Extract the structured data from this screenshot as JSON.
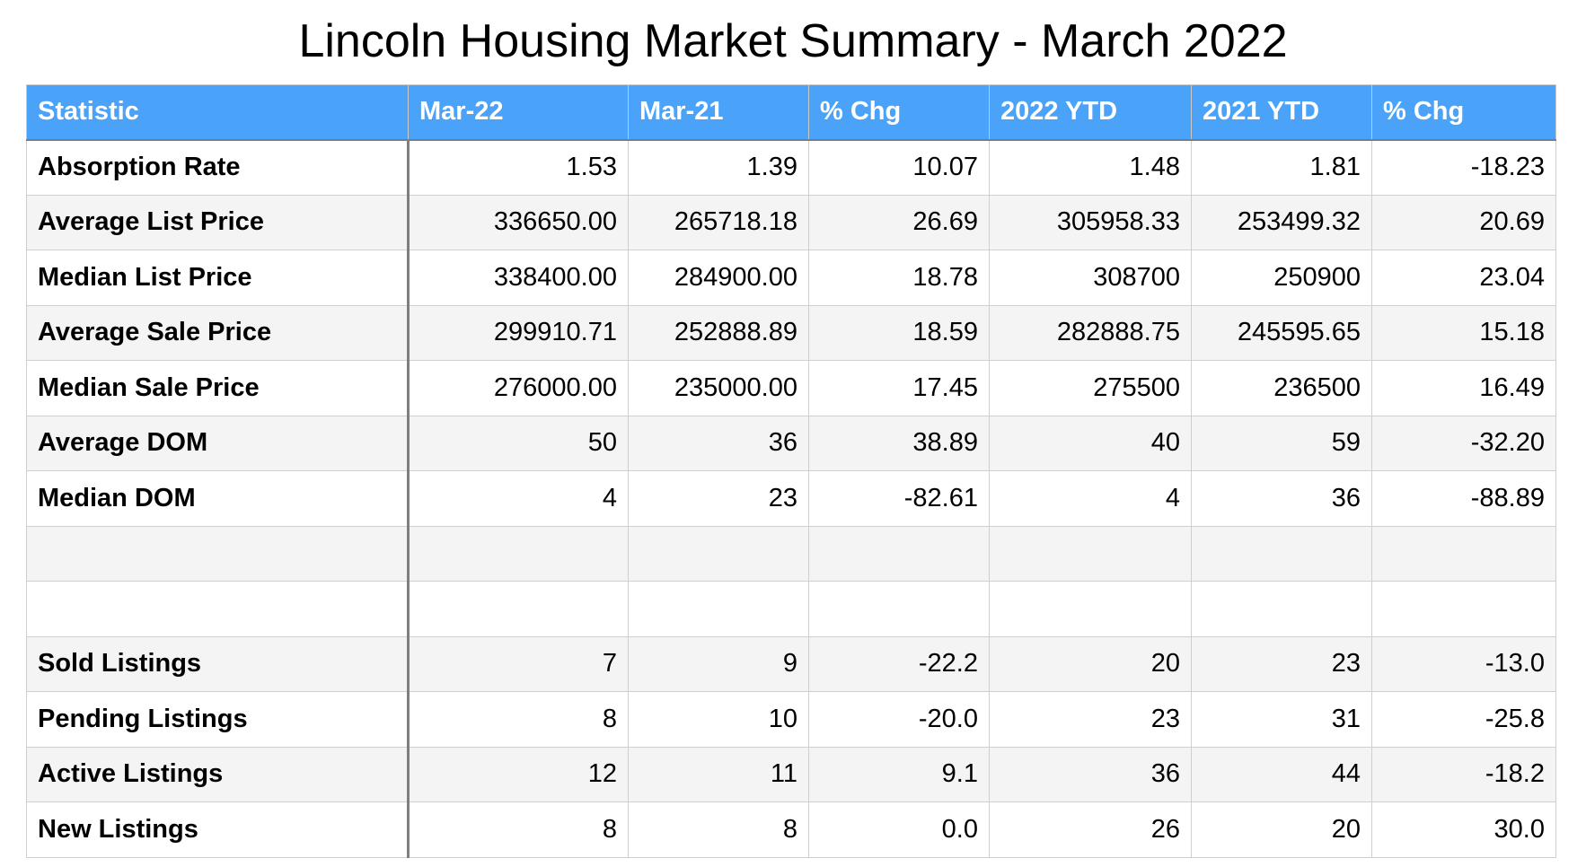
{
  "title": "Lincoln Housing Market Summary - March 2022",
  "table": {
    "headers": [
      "Statistic",
      "Mar-22",
      "Mar-21",
      "% Chg",
      "2022 YTD",
      "2021 YTD",
      "% Chg"
    ],
    "rows": [
      [
        "Absorption Rate",
        "1.53",
        "1.39",
        "10.07",
        "1.48",
        "1.81",
        "-18.23"
      ],
      [
        "Average List Price",
        "336650.00",
        "265718.18",
        "26.69",
        "305958.33",
        "253499.32",
        "20.69"
      ],
      [
        "Median List Price",
        "338400.00",
        "284900.00",
        "18.78",
        "308700",
        "250900",
        "23.04"
      ],
      [
        "Average Sale Price",
        "299910.71",
        "252888.89",
        "18.59",
        "282888.75",
        "245595.65",
        "15.18"
      ],
      [
        "Median Sale Price",
        "276000.00",
        "235000.00",
        "17.45",
        "275500",
        "236500",
        "16.49"
      ],
      [
        "Average DOM",
        "50",
        "36",
        "38.89",
        "40",
        "59",
        "-32.20"
      ],
      [
        "Median DOM",
        "4",
        "23",
        "-82.61",
        "4",
        "36",
        "-88.89"
      ],
      [
        "",
        "",
        "",
        "",
        "",
        "",
        ""
      ],
      [
        "",
        "",
        "",
        "",
        "",
        "",
        ""
      ],
      [
        "Sold Listings",
        "7",
        "9",
        "-22.2",
        "20",
        "23",
        "-13.0"
      ],
      [
        "Pending Listings",
        "8",
        "10",
        "-20.0",
        "23",
        "31",
        "-25.8"
      ],
      [
        "Active Listings",
        "12",
        "11",
        "9.1",
        "36",
        "44",
        "-18.2"
      ],
      [
        "New Listings",
        "8",
        "8",
        "0.0",
        "26",
        "20",
        "30.0"
      ]
    ]
  },
  "colors": {
    "header_bg": "#4aa3f8",
    "header_text": "#ffffff",
    "row_alt_bg": "#f4f4f4"
  }
}
